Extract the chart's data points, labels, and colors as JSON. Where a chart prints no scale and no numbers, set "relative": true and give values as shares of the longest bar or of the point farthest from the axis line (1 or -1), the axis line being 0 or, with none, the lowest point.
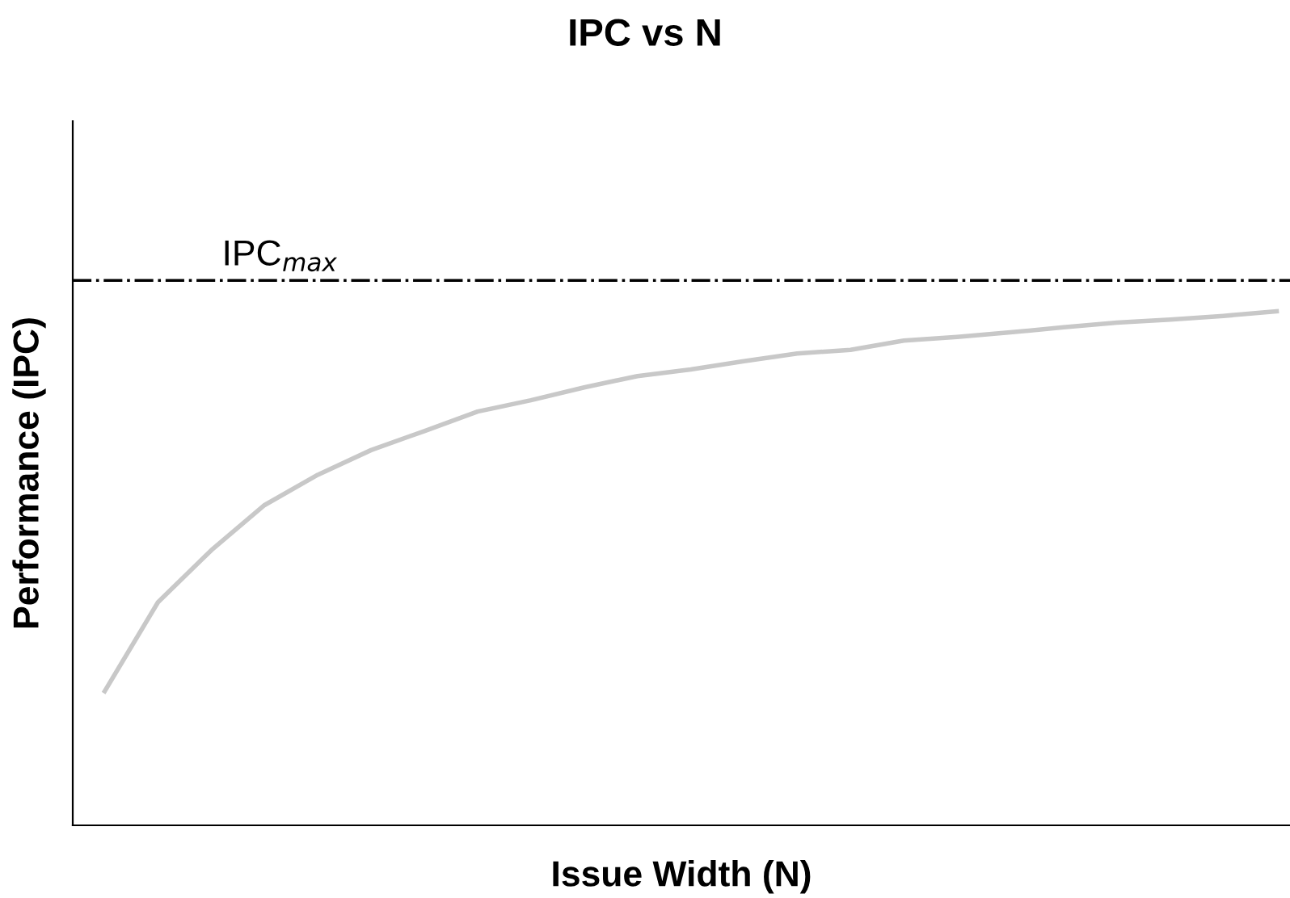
{
  "chart_data": {
    "type": "line",
    "title": "IPC vs N",
    "xlabel": "Issue Width (N)",
    "ylabel": "Performance (IPC)",
    "relative": true,
    "grid": false,
    "legend": false,
    "categories": [
      null,
      null,
      null,
      null,
      null,
      null,
      null,
      null,
      null,
      null,
      null,
      null,
      null,
      null,
      null,
      null,
      null,
      null,
      null,
      null,
      null,
      null,
      null
    ],
    "series": [
      {
        "color": "#c8c8c8",
        "values": [
          0.261,
          0.434,
          0.535,
          0.623,
          0.682,
          0.73,
          0.767,
          0.805,
          0.827,
          0.852,
          0.874,
          0.887,
          0.903,
          0.918,
          0.925,
          0.943,
          0.95,
          0.959,
          0.969,
          0.978,
          0.984,
          0.991,
          1
        ]
      }
    ],
    "ref_lines": [
      {
        "axis": "y",
        "value": 1.06,
        "label": "IPC$_{max}$",
        "color": "#000000",
        "line_style": "dashdot"
      }
    ]
  }
}
